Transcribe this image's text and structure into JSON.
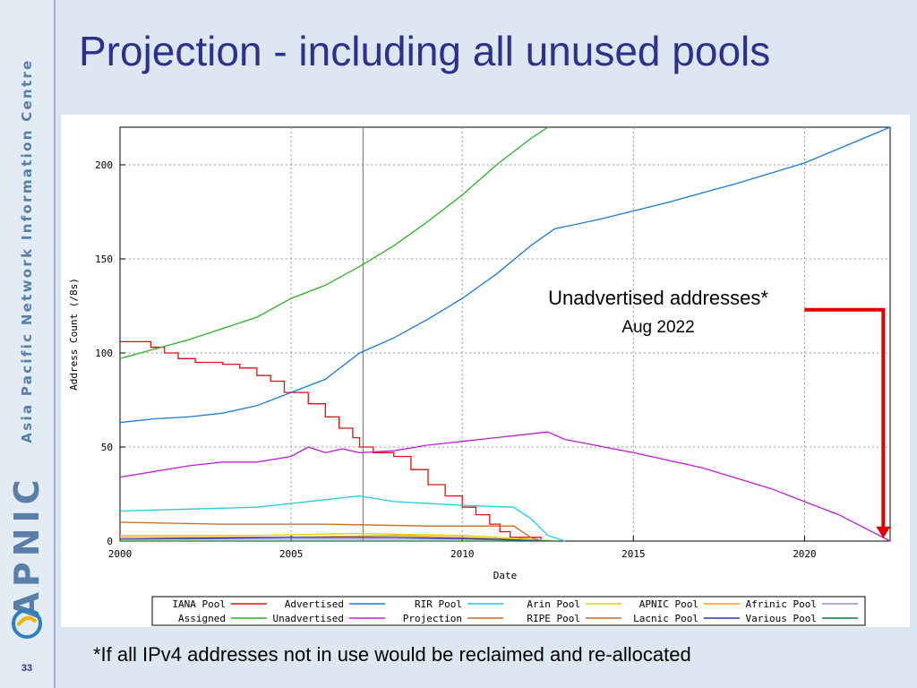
{
  "slide": {
    "title": "Projection - including all unused pools",
    "footnote": "*If all IPv4 addresses not in use would be reclaimed and re-allocated",
    "page_number": "33",
    "sidebar_org": "Asia Pacific Network Information Centre",
    "sidebar_brand": "APNIC"
  },
  "chart_data": {
    "type": "line",
    "xlabel": "Date",
    "ylabel": "Address Count (/8s)",
    "xlim": [
      2000,
      2022.5
    ],
    "ylim": [
      0,
      220
    ],
    "xticks": [
      2000,
      2005,
      2010,
      2015,
      2020
    ],
    "yticks": [
      0,
      50,
      100,
      150,
      200
    ],
    "grid": true,
    "legend_placement": "bottom",
    "vline_x": 2007.1,
    "series": [
      {
        "name": "IANA Pool",
        "color": "#dd1111",
        "step": true,
        "points": [
          [
            2000,
            106
          ],
          [
            2000.5,
            106
          ],
          [
            2000.9,
            103
          ],
          [
            2001.3,
            100
          ],
          [
            2001.7,
            97
          ],
          [
            2002.2,
            95
          ],
          [
            2003,
            94
          ],
          [
            2003.5,
            92
          ],
          [
            2004,
            88
          ],
          [
            2004.4,
            85
          ],
          [
            2004.8,
            79
          ],
          [
            2005.5,
            73
          ],
          [
            2006,
            66
          ],
          [
            2006.4,
            60
          ],
          [
            2006.8,
            55
          ],
          [
            2007,
            50
          ],
          [
            2007.4,
            47
          ],
          [
            2008,
            45
          ],
          [
            2008.5,
            38
          ],
          [
            2009,
            30
          ],
          [
            2009.5,
            24
          ],
          [
            2010,
            18
          ],
          [
            2010.4,
            14
          ],
          [
            2010.8,
            9
          ],
          [
            2011.1,
            5
          ],
          [
            2011.4,
            2
          ],
          [
            2012.3,
            0
          ]
        ]
      },
      {
        "name": "Advertised",
        "color": "#1a7bd6",
        "points": [
          [
            2000,
            63
          ],
          [
            2001,
            65
          ],
          [
            2002,
            66
          ],
          [
            2003,
            68
          ],
          [
            2004,
            72
          ],
          [
            2005,
            79
          ],
          [
            2006,
            86
          ],
          [
            2007,
            100
          ],
          [
            2008,
            108
          ],
          [
            2009,
            118
          ],
          [
            2010,
            129
          ],
          [
            2011,
            142
          ],
          [
            2012,
            157
          ],
          [
            2012.7,
            166
          ],
          [
            2014,
            171
          ],
          [
            2016,
            180
          ],
          [
            2018,
            190
          ],
          [
            2020,
            201
          ],
          [
            2022.5,
            220
          ]
        ]
      },
      {
        "name": "RIR Pool",
        "color": "#1ecde0",
        "points": [
          [
            2000,
            16
          ],
          [
            2002,
            17
          ],
          [
            2004,
            18
          ],
          [
            2005,
            20
          ],
          [
            2006,
            22
          ],
          [
            2007,
            24
          ],
          [
            2008,
            21
          ],
          [
            2010,
            19
          ],
          [
            2011.5,
            18
          ],
          [
            2012,
            12
          ],
          [
            2012.5,
            3
          ],
          [
            2013,
            0
          ]
        ]
      },
      {
        "name": "Arin Pool",
        "color": "#e8cf00",
        "points": [
          [
            2000,
            3
          ],
          [
            2004,
            3
          ],
          [
            2007,
            4
          ],
          [
            2010,
            3
          ],
          [
            2012,
            1
          ],
          [
            2012.8,
            0
          ]
        ]
      },
      {
        "name": "APNIC Pool",
        "color": "#ff9f00",
        "points": [
          [
            2000,
            2
          ],
          [
            2005,
            2
          ],
          [
            2008,
            3
          ],
          [
            2010,
            2
          ],
          [
            2011.3,
            1
          ],
          [
            2012,
            0
          ]
        ]
      },
      {
        "name": "Afrinic Pool",
        "color": "#a18bd4",
        "points": [
          [
            2000,
            1
          ],
          [
            2006,
            1
          ],
          [
            2010,
            1
          ],
          [
            2012.8,
            0
          ]
        ]
      },
      {
        "name": "Assigned",
        "color": "#2ab324",
        "points": [
          [
            2000,
            97
          ],
          [
            2001,
            102
          ],
          [
            2002,
            107
          ],
          [
            2003,
            113
          ],
          [
            2004,
            119
          ],
          [
            2005,
            129
          ],
          [
            2006,
            136
          ],
          [
            2007,
            146
          ],
          [
            2008,
            157
          ],
          [
            2009,
            170
          ],
          [
            2010,
            184
          ],
          [
            2011,
            200
          ],
          [
            2012,
            214
          ],
          [
            2012.5,
            220
          ]
        ]
      },
      {
        "name": "Unadvertised",
        "color": "#c020d8",
        "points": [
          [
            2000,
            34
          ],
          [
            2001,
            37
          ],
          [
            2002,
            40
          ],
          [
            2003,
            42
          ],
          [
            2004,
            42
          ],
          [
            2005,
            45
          ],
          [
            2005.5,
            50
          ],
          [
            2006,
            47
          ],
          [
            2006.5,
            49
          ],
          [
            2007,
            47
          ],
          [
            2008,
            48
          ],
          [
            2009,
            51
          ],
          [
            2010,
            53
          ],
          [
            2011,
            55
          ],
          [
            2012,
            57
          ],
          [
            2012.5,
            58
          ],
          [
            2013,
            54
          ],
          [
            2015,
            47
          ],
          [
            2017,
            39
          ],
          [
            2019,
            28
          ],
          [
            2021,
            14
          ],
          [
            2022.5,
            0
          ]
        ]
      },
      {
        "name": "Projection",
        "color": "#c76a1e",
        "points": []
      },
      {
        "name": "RIPE Pool",
        "color": "#c76a1e",
        "points": [
          [
            2000,
            10
          ],
          [
            2003,
            9
          ],
          [
            2006,
            9
          ],
          [
            2009,
            8
          ],
          [
            2011.5,
            8
          ],
          [
            2012,
            2
          ],
          [
            2012.3,
            0
          ]
        ]
      },
      {
        "name": "Lacnic Pool",
        "color": "#2437b8",
        "points": [
          [
            2000,
            1
          ],
          [
            2005,
            2
          ],
          [
            2008,
            2
          ],
          [
            2011,
            1
          ],
          [
            2012.5,
            0
          ]
        ]
      },
      {
        "name": "Various Pool",
        "color": "#0a7a3a",
        "points": [
          [
            2000,
            0
          ],
          [
            2012.8,
            0
          ]
        ]
      },
      {
        "name": "",
        "color": "#8b4513",
        "legend": false,
        "points": []
      }
    ],
    "annotation": {
      "text": "Unadvertised addresses*",
      "subtext": "Aug 2022",
      "arrow_color": "#e00000",
      "from_y": 123,
      "to_y": 2,
      "at_x": 2022.3
    }
  }
}
